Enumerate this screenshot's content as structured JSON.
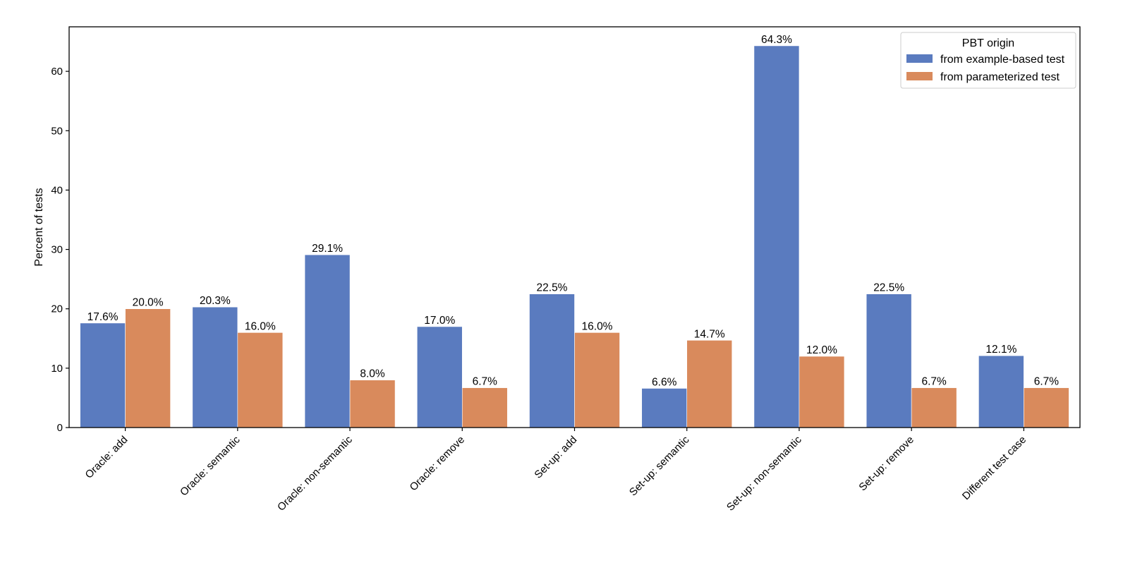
{
  "chart_data": {
    "type": "bar",
    "ylabel": "Percent of tests",
    "xlabel": "",
    "ylim": [
      0,
      67.5
    ],
    "yticks": [
      0,
      10,
      20,
      30,
      40,
      50,
      60
    ],
    "categories": [
      "Oracle: add",
      "Oracle: semantic",
      "Oracle: non-semantic",
      "Oracle: remove",
      "Set-up: add",
      "Set-up: semantic",
      "Set-up: non-semantic",
      "Set-up: remove",
      "Different test case"
    ],
    "series": [
      {
        "name": "from example-based test",
        "color": "#5a7bbf",
        "values": [
          17.6,
          20.3,
          29.1,
          17.0,
          22.5,
          6.6,
          64.3,
          22.5,
          12.1
        ],
        "labels": [
          "17.6%",
          "20.3%",
          "29.1%",
          "17.0%",
          "22.5%",
          "6.6%",
          "64.3%",
          "22.5%",
          "12.1%"
        ]
      },
      {
        "name": "from parameterized test",
        "color": "#d98a5c",
        "values": [
          20.0,
          16.0,
          8.0,
          6.7,
          16.0,
          14.7,
          12.0,
          6.7,
          6.7
        ],
        "labels": [
          "20.0%",
          "16.0%",
          "8.0%",
          "6.7%",
          "16.0%",
          "14.7%",
          "12.0%",
          "6.7%",
          "6.7%"
        ]
      }
    ],
    "legend": {
      "title": "PBT origin",
      "position": "top-right"
    },
    "grid": false
  }
}
